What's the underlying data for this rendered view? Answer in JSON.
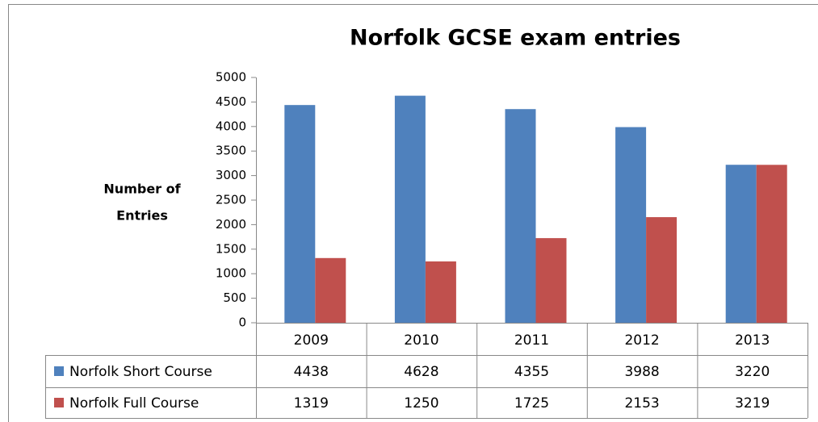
{
  "chart_data": {
    "type": "bar",
    "title": "Norfolk GCSE exam entries",
    "y_label": [
      "Number of",
      "Entries"
    ],
    "categories": [
      "2009",
      "2010",
      "2011",
      "2012",
      "2013"
    ],
    "series": [
      {
        "name": "Norfolk Short Course",
        "color": "#4f81bd",
        "values": [
          4438,
          4628,
          4355,
          3988,
          3220
        ]
      },
      {
        "name": "Norfolk Full Course",
        "color": "#c0504d",
        "values": [
          1319,
          1250,
          1725,
          2153,
          3219
        ]
      }
    ],
    "ylim": [
      0,
      5000
    ],
    "yticks": [
      0,
      500,
      1000,
      1500,
      2000,
      2500,
      3000,
      3500,
      4000,
      4500,
      5000
    ],
    "data_table": true
  }
}
